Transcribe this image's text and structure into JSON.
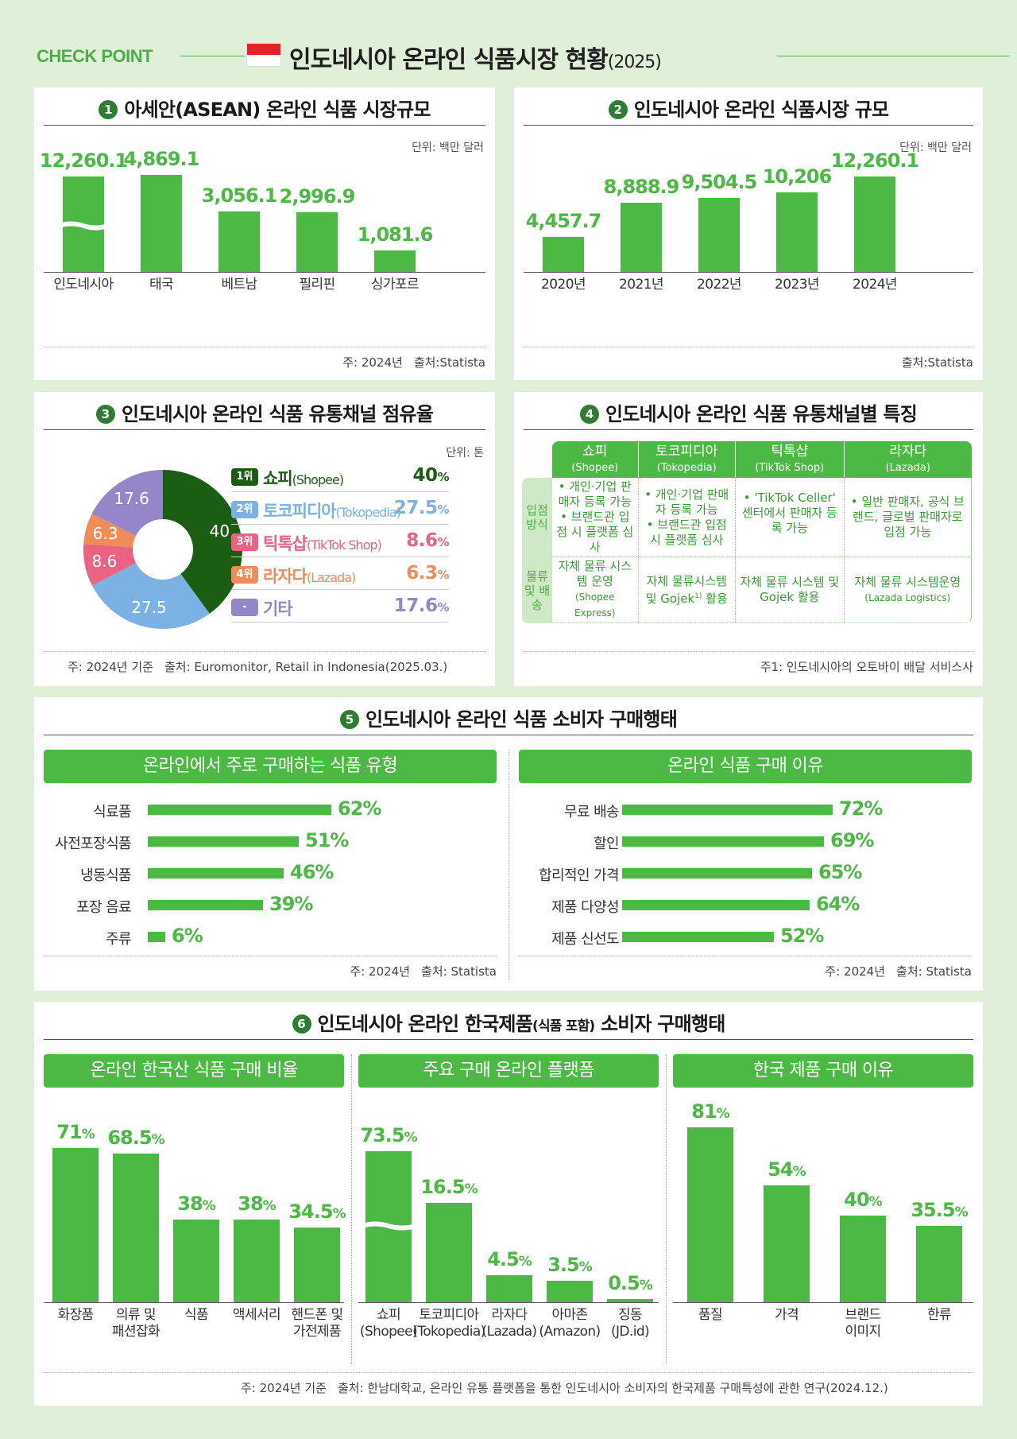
{
  "header": {
    "checkpoint": "CHECK POINT",
    "title": "인도네시아  온라인 식품시장 현황",
    "year": "(2025)",
    "flag_colors": {
      "top": "#e0242a",
      "bottom": "#ffffff"
    }
  },
  "colors": {
    "accent": "#4cb944",
    "dark_green": "#2e7d32"
  },
  "s1": {
    "num": "1",
    "title": "아세안(ASEAN) 온라인 식품 시장규모",
    "unit": "단위: 백만 달러",
    "note": "주: 2024년",
    "source": "출처:Statista",
    "chart_data": {
      "type": "bar",
      "title": "아세안(ASEAN) 온라인 식품 시장규모",
      "categories": [
        "인도네시아",
        "태국",
        "베트남",
        "필리핀",
        "싱가포르"
      ],
      "values": [
        12260.1,
        4869.1,
        3056.1,
        2996.9,
        1081.6
      ],
      "value_labels": [
        "12,260.1",
        "4,869.1",
        "3,056.1",
        "2,996.9",
        "1,081.6"
      ],
      "axis_break_on": "인도네시아"
    }
  },
  "s2": {
    "num": "2",
    "title": "인도네시아 온라인 식품시장 규모",
    "unit": "단위: 백만 달러",
    "source": "출처:Statista",
    "chart_data": {
      "type": "bar",
      "title": "인도네시아 온라인 식품시장 규모",
      "categories": [
        "2020년",
        "2021년",
        "2022년",
        "2023년",
        "2024년"
      ],
      "values": [
        4457.7,
        8888.9,
        9504.5,
        10206,
        12260.1
      ],
      "value_labels": [
        "4,457.7",
        "8,888.9",
        "9,504.5",
        "10,206",
        "12,260.1"
      ]
    }
  },
  "s3": {
    "num": "3",
    "title": "인도네시아 온라인 식품 유통채널 점유율",
    "unit": "단위: 톤",
    "note": "주: 2024년 기준",
    "source": "출처: Euromonitor, Retail in Indonesia(2025.03.)",
    "chart_data": {
      "type": "pie",
      "title": "인도네시아 온라인 식품 유통채널 점유율",
      "series": [
        {
          "name": "쇼피(Shopee)",
          "value": 40,
          "color": "#1b5e13"
        },
        {
          "name": "토코피디아(Tokopedia)",
          "value": 27.5,
          "color": "#7bb1e3"
        },
        {
          "name": "틱톡샵(TikTok Shop)",
          "value": 8.6,
          "color": "#ea6383"
        },
        {
          "name": "라자다(Lazada)",
          "value": 6.3,
          "color": "#f08c5a"
        },
        {
          "name": "기타",
          "value": 17.6,
          "color": "#9486c8"
        }
      ]
    },
    "labels": [
      "40",
      "27.5",
      "8.6",
      "6.3",
      "17.6"
    ],
    "legend": [
      {
        "rank": "1위",
        "name": "쇼피",
        "en": "(Shopee)",
        "pct": "40",
        "color": "#1b5e13"
      },
      {
        "rank": "2위",
        "name": "토코피디아",
        "en": "(Tokopedia)",
        "pct": "27.5",
        "color": "#7bb1e3"
      },
      {
        "rank": "3위",
        "name": "틱톡샵",
        "en": "(TikTok Shop)",
        "pct": "8.6",
        "color": "#ea6383"
      },
      {
        "rank": "4위",
        "name": "라자다",
        "en": "(Lazada)",
        "pct": "6.3",
        "color": "#f08c5a"
      },
      {
        "rank": "-",
        "name": "기타",
        "en": "",
        "pct": "17.6",
        "color": "#9486c8"
      }
    ],
    "pct_sign": "%"
  },
  "s4": {
    "num": "4",
    "title": "인도네시아 온라인 식품 유통채널별 특징",
    "note": "주1: 인도네시아의 오토바이 배달 서비스사",
    "columns": [
      {
        "ko": "쇼피",
        "en": "(Shopee)"
      },
      {
        "ko": "토코피디아",
        "en": "(Tokopedia)"
      },
      {
        "ko": "틱톡샵",
        "en": "(TikTok Shop)"
      },
      {
        "ko": "라자다",
        "en": "(Lazada)"
      }
    ],
    "row1_head": "입점 방식",
    "row1": [
      [
        "• 개인·기업 판매자 등록 가능",
        "• 브랜드관 입점 시 플랫폼 심사"
      ],
      [
        "• 개인·기업 판매자 등록 가능",
        "• 브랜드관 입점 시 플랫폼 심사"
      ],
      [
        "• 'TikTok Celler' 센터에서 판매자 등록 가능"
      ],
      [
        "• 일반 판매자, 공식 브랜드, 글로벌 판매자로 입점 가능"
      ]
    ],
    "row2_head": "물류 및 배송",
    "row2": [
      {
        "text": "자체 물류 시스템 운영",
        "sub": "(Shopee Express)"
      },
      {
        "text": "자체 물류시스템 및 Gojek",
        "sup": "1)",
        "text2": " 활용"
      },
      {
        "text": "자체 물류 시스템 및 Gojek 활용"
      },
      {
        "text": "자체 물류 시스템운영",
        "sub": "(Lazada Logistics)"
      }
    ]
  },
  "s5": {
    "num": "5",
    "title": "인도네시아 온라인 식품 소비자 구매행태",
    "left": {
      "header": "온라인에서 주로 구매하는 식품 유형",
      "note": "주: 2024년",
      "source": "출처: Statista",
      "chart_data": {
        "type": "bar",
        "orientation": "horizontal",
        "title": "온라인에서 주로 구매하는 식품 유형",
        "categories": [
          "식료품",
          "사전포장식품",
          "냉동식품",
          "포장 음료",
          "주류"
        ],
        "values": [
          62,
          51,
          46,
          39,
          6
        ],
        "value_labels": [
          "62%",
          "51%",
          "46%",
          "39%",
          "6%"
        ]
      }
    },
    "right": {
      "header": "온라인 식품 구매 이유",
      "note": "주: 2024년",
      "source": "출처: Statista",
      "chart_data": {
        "type": "bar",
        "orientation": "horizontal",
        "title": "온라인 식품 구매 이유",
        "categories": [
          "무료 배송",
          "할인",
          "합리적인 가격",
          "제품 다양성",
          "제품 신선도"
        ],
        "values": [
          72,
          69,
          65,
          64,
          52
        ],
        "value_labels": [
          "72%",
          "69%",
          "65%",
          "64%",
          "52%"
        ]
      }
    }
  },
  "s6": {
    "num": "6",
    "title": "인도네시아 온라인 한국제품",
    "title_small": "(식품 포함)",
    "title_end": " 소비자 구매행태",
    "note": "주: 2024년 기준",
    "source": "출처: 한남대학교, 온라인 유통 플랫폼을 통한 인도네시아 소비자의 한국제품 구매특성에 관한 연구(2024.12.)",
    "a": {
      "header": "온라인 한국산 식품 구매 비율",
      "chart_data": {
        "type": "bar",
        "title": "온라인 한국산 식품 구매 비율",
        "categories": [
          "화장품",
          "의류 및 패션잡화",
          "식품",
          "액세서리",
          "핸드폰 및 가전제품"
        ],
        "label_lines": [
          [
            "화장품"
          ],
          [
            "의류 및",
            "패션잡화"
          ],
          [
            "식품"
          ],
          [
            "액세서리"
          ],
          [
            "핸드폰 및",
            "가전제품"
          ]
        ],
        "values": [
          71,
          68.5,
          38,
          38,
          34.5
        ],
        "value_nums": [
          "71",
          "68.5",
          "38",
          "38",
          "34.5"
        ]
      }
    },
    "b": {
      "header": "주요 구매 온라인 플랫폼",
      "chart_data": {
        "type": "bar",
        "title": "주요 구매 온라인 플랫폼",
        "categories": [
          "쇼피 (Shopee)",
          "토코피디아 (Tokopedia)",
          "라자다 (Lazada)",
          "아마존 (Amazon)",
          "징동 (JD.id)"
        ],
        "label_lines": [
          [
            "쇼피",
            "(Shopee)"
          ],
          [
            "토코피디아",
            "(Tokopedia)"
          ],
          [
            "라자다",
            "(Lazada)"
          ],
          [
            "아마존",
            "(Amazon)"
          ],
          [
            "징동",
            "(JD.id)"
          ]
        ],
        "values": [
          73.5,
          16.5,
          4.5,
          3.5,
          0.5
        ],
        "value_nums": [
          "73.5",
          "16.5",
          "4.5",
          "3.5",
          "0.5"
        ],
        "axis_break_on": "쇼피 (Shopee)"
      }
    },
    "c": {
      "header": "한국 제품 구매 이유",
      "chart_data": {
        "type": "bar",
        "title": "한국 제품 구매 이유",
        "categories": [
          "품질",
          "가격",
          "브랜드 이미지",
          "한류"
        ],
        "label_lines": [
          [
            "품질"
          ],
          [
            "가격"
          ],
          [
            "브랜드",
            "이미지"
          ],
          [
            "한류"
          ]
        ],
        "values": [
          81,
          54,
          40,
          35.5
        ],
        "value_nums": [
          "81",
          "54",
          "40",
          "35.5"
        ]
      }
    },
    "pct_sign": "%"
  }
}
